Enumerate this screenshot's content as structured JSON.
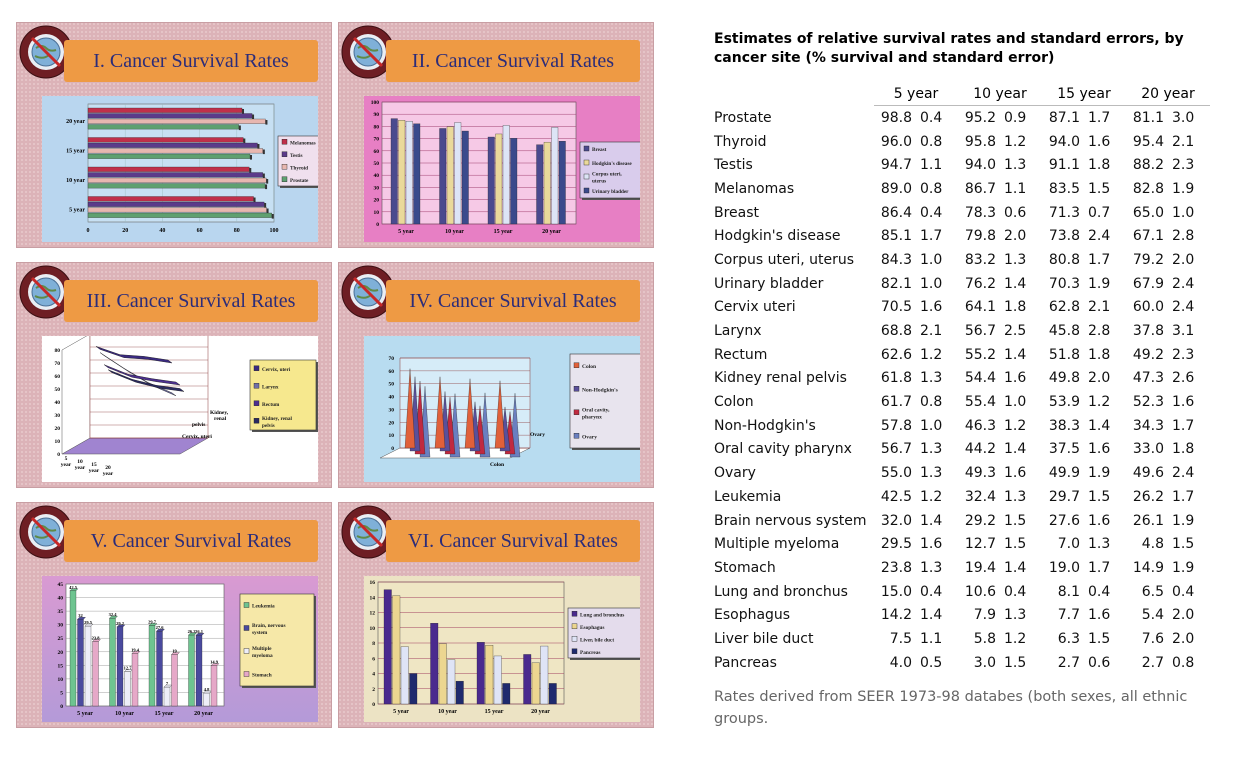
{
  "panels": [
    {
      "title": "I. Cancer Survival Rates"
    },
    {
      "title": "II. Cancer Survival Rates"
    },
    {
      "title": "III. Cancer Survival Rates"
    },
    {
      "title": "IV. Cancer Survival Rates"
    },
    {
      "title": "V. Cancer Survival Rates"
    },
    {
      "title": "VI. Cancer Survival Rates"
    }
  ],
  "table": {
    "title": "Estimates of relative survival rates and standard errors, by cancer  site (% survival and  standard error)",
    "columns": [
      "5 year",
      "10 year",
      "15 year",
      "20 year"
    ],
    "rows": [
      {
        "site": "Prostate",
        "vals": [
          "98.8",
          "0.4",
          "95.2",
          "0.9",
          "87.1",
          "1.7",
          "81.1",
          "3.0"
        ]
      },
      {
        "site": "Thyroid",
        "vals": [
          "96.0",
          "0.8",
          "95.8",
          "1.2",
          "94.0",
          "1.6",
          "95.4",
          "2.1"
        ]
      },
      {
        "site": "Testis",
        "vals": [
          "94.7",
          "1.1",
          "94.0",
          "1.3",
          "91.1",
          "1.8",
          "88.2",
          "2.3"
        ]
      },
      {
        "site": "Melanomas",
        "vals": [
          "89.0",
          "0.8",
          "86.7",
          "1.1",
          "83.5",
          "1.5",
          "82.8",
          "1.9"
        ]
      },
      {
        "site": "Breast",
        "vals": [
          "86.4",
          "0.4",
          "78.3",
          "0.6",
          "71.3",
          "0.7",
          "65.0",
          "1.0"
        ]
      },
      {
        "site": "Hodgkin's disease",
        "vals": [
          "85.1",
          "1.7",
          "79.8",
          "2.0",
          "73.8",
          "2.4",
          "67.1",
          "2.8"
        ]
      },
      {
        "site": "Corpus uteri, uterus",
        "vals": [
          "84.3",
          "1.0",
          "83.2",
          "1.3",
          "80.8",
          "1.7",
          "79.2",
          "2.0"
        ]
      },
      {
        "site": "Urinary bladder",
        "vals": [
          "82.1",
          "1.0",
          "76.2",
          "1.4",
          "70.3",
          "1.9",
          "67.9",
          "2.4"
        ]
      },
      {
        "site": "Cervix uteri",
        "vals": [
          "70.5",
          "1.6",
          "64.1",
          "1.8",
          "62.8",
          "2.1",
          "60.0",
          "2.4"
        ]
      },
      {
        "site": "Larynx",
        "vals": [
          "68.8",
          "2.1",
          "56.7",
          "2.5",
          "45.8",
          "2.8",
          "37.8",
          "3.1"
        ]
      },
      {
        "site": "Rectum",
        "vals": [
          "62.6",
          "1.2",
          "55.2",
          "1.4",
          "51.8",
          "1.8",
          "49.2",
          "2.3"
        ]
      },
      {
        "site": "Kidney renal pelvis",
        "vals": [
          "61.8",
          "1.3",
          "54.4",
          "1.6",
          "49.8",
          "2.0",
          "47.3",
          "2.6"
        ]
      },
      {
        "site": "Colon",
        "vals": [
          "61.7",
          "0.8",
          "55.4",
          "1.0",
          "53.9",
          "1.2",
          "52.3",
          "1.6"
        ]
      },
      {
        "site": "Non-Hodgkin's",
        "vals": [
          "57.8",
          "1.0",
          "46.3",
          "1.2",
          "38.3",
          "1.4",
          "34.3",
          "1.7"
        ]
      },
      {
        "site": "Oral cavity pharynx",
        "vals": [
          "56.7",
          "1.3",
          "44.2",
          "1.4",
          "37.5",
          "1.6",
          "33.0",
          "1.8"
        ]
      },
      {
        "site": "Ovary",
        "vals": [
          "55.0",
          "1.3",
          "49.3",
          "1.6",
          "49.9",
          "1.9",
          "49.6",
          "2.4"
        ]
      },
      {
        "site": "Leukemia",
        "vals": [
          "42.5",
          "1.2",
          "32.4",
          "1.3",
          "29.7",
          "1.5",
          "26.2",
          "1.7"
        ]
      },
      {
        "site": "Brain nervous system",
        "vals": [
          "32.0",
          "1.4",
          "29.2",
          "1.5",
          "27.6",
          "1.6",
          "26.1",
          "1.9"
        ]
      },
      {
        "site": "Multiple myeloma",
        "vals": [
          "29.5",
          "1.6",
          "12.7",
          "1.5",
          "7.0",
          "1.3",
          "4.8",
          "1.5"
        ]
      },
      {
        "site": "Stomach",
        "vals": [
          "23.8",
          "1.3",
          "19.4",
          "1.4",
          "19.0",
          "1.7",
          "14.9",
          "1.9"
        ]
      },
      {
        "site": "Lung and bronchus",
        "vals": [
          "15.0",
          "0.4",
          "10.6",
          "0.4",
          "8.1",
          "0.4",
          "6.5",
          "0.4"
        ]
      },
      {
        "site": "Esophagus",
        "vals": [
          "14.2",
          "1.4",
          "7.9",
          "1.3",
          "7.7",
          "1.6",
          "5.4",
          "2.0"
        ]
      },
      {
        "site": "Liver bile duct",
        "vals": [
          "7.5",
          "1.1",
          "5.8",
          "1.2",
          "6.3",
          "1.5",
          "7.6",
          "2.0"
        ]
      },
      {
        "site": "Pancreas",
        "vals": [
          "4.0",
          "0.5",
          "3.0",
          "1.5",
          "2.7",
          "0.6",
          "2.7",
          "0.8"
        ]
      }
    ],
    "footnote": "Rates derived from SEER 1973-98 databes (both sexes, all ethnic groups."
  },
  "chart_data": [
    {
      "type": "bar",
      "orientation": "horizontal",
      "categories": [
        "5 year",
        "10 year",
        "15 year",
        "20 year"
      ],
      "series": [
        {
          "name": "Melanomas",
          "values": [
            89.0,
            86.7,
            83.5,
            82.8
          ],
          "color": "#c0304a"
        },
        {
          "name": "Testis",
          "values": [
            94.7,
            94.0,
            91.1,
            88.2
          ],
          "color": "#5b3b8a"
        },
        {
          "name": "Thyroid",
          "values": [
            96.0,
            95.8,
            94.0,
            95.4
          ],
          "color": "#e8b7b0"
        },
        {
          "name": "Prostate",
          "values": [
            98.8,
            95.2,
            87.1,
            81.1
          ],
          "color": "#5fa070"
        }
      ],
      "xlim": [
        0,
        100
      ],
      "xticks": [
        0,
        20,
        40,
        60,
        80,
        100
      ],
      "legend": "right"
    },
    {
      "type": "bar",
      "categories": [
        "5 year",
        "10 year",
        "15 year",
        "20 year"
      ],
      "series": [
        {
          "name": "Breast",
          "values": [
            86.4,
            78.3,
            71.3,
            65.0
          ],
          "color": "#4a4a8e"
        },
        {
          "name": "Hodgkin's disease",
          "values": [
            85.1,
            79.8,
            73.8,
            67.1
          ],
          "color": "#ead99a"
        },
        {
          "name": "Corpus uteri, uterus",
          "values": [
            84.3,
            83.2,
            80.8,
            79.2
          ],
          "color": "#dde4f6"
        },
        {
          "name": "Urinary bladder",
          "values": [
            82.1,
            76.2,
            70.3,
            67.9
          ],
          "color": "#3a4a8c"
        }
      ],
      "ylim": [
        0,
        100
      ],
      "yticks": [
        0,
        10,
        20,
        30,
        40,
        50,
        60,
        70,
        80,
        90,
        100
      ],
      "legend": "right"
    },
    {
      "type": "line",
      "style": "3d-ribbon",
      "categories": [
        "5 year",
        "10 year",
        "15 year",
        "20 year"
      ],
      "series": [
        {
          "name": "Cervix, uteri",
          "values": [
            70.5,
            64.1,
            62.8,
            60.0
          ]
        },
        {
          "name": "Larynx",
          "values": [
            68.8,
            56.7,
            45.8,
            37.8
          ]
        },
        {
          "name": "Rectum",
          "values": [
            62.6,
            55.2,
            51.8,
            49.2
          ]
        },
        {
          "name": "Kidney, renal pelvis",
          "values": [
            61.8,
            54.4,
            49.8,
            47.3
          ]
        }
      ],
      "depth_labels": [
        "Kidney, renal pelvis",
        "Cervix, uteri"
      ],
      "ylim": [
        0,
        80
      ],
      "yticks": [
        0,
        10,
        20,
        30,
        40,
        50,
        60,
        70,
        80
      ],
      "legend": "right"
    },
    {
      "type": "bar",
      "style": "3d-cone",
      "categories": [
        "5 year",
        "10 year",
        "15 year",
        "20 year"
      ],
      "series": [
        {
          "name": "Colon",
          "values": [
            61.7,
            55.4,
            53.9,
            52.3
          ],
          "color": "#e0603a"
        },
        {
          "name": "Non-Hodgkin's",
          "values": [
            57.8,
            46.3,
            38.3,
            34.3
          ],
          "color": "#5a4f9a"
        },
        {
          "name": "Oral cavity, pharynx",
          "values": [
            56.7,
            44.2,
            37.5,
            33.0
          ],
          "color": "#c02a40"
        },
        {
          "name": "Ovary",
          "values": [
            55.0,
            49.3,
            49.9,
            49.6
          ],
          "color": "#6a7fc0"
        }
      ],
      "depth_labels": [
        "Ovary",
        "Colon"
      ],
      "data_labels": [
        "61.7",
        "57.8",
        "56.7",
        "55",
        "55.4",
        "49.3",
        "49.9",
        "49.6"
      ],
      "ylim": [
        0,
        70
      ],
      "yticks": [
        0,
        10,
        20,
        30,
        40,
        50,
        60,
        70
      ],
      "legend": "right"
    },
    {
      "type": "bar",
      "style": "3d",
      "categories": [
        "5 year",
        "10 year",
        "15 year",
        "20 year"
      ],
      "series": [
        {
          "name": "Leukemia",
          "values": [
            42.5,
            32.4,
            29.7,
            26.2
          ],
          "color": "#6ec490"
        },
        {
          "name": "Brain, nervous system",
          "values": [
            32.0,
            29.2,
            27.6,
            26.1
          ],
          "color": "#4a4a9e"
        },
        {
          "name": "Multiple myeloma",
          "values": [
            29.5,
            12.7,
            7.0,
            4.8
          ],
          "color": "#eeeef8"
        },
        {
          "name": "Stomach",
          "values": [
            23.8,
            19.4,
            19.0,
            14.9
          ],
          "color": "#e6a8c8"
        }
      ],
      "data_labels": [
        "42.5",
        "32.4",
        "29.2",
        "29.7",
        "26.2",
        "23.8",
        "14.9"
      ],
      "ylim": [
        0,
        45
      ],
      "yticks": [
        0,
        5,
        10,
        15,
        20,
        25,
        30,
        35,
        40,
        45
      ],
      "legend": "right"
    },
    {
      "type": "bar",
      "categories": [
        "5 year",
        "10 year",
        "15 year",
        "20 year"
      ],
      "series": [
        {
          "name": "Lung and bronchus",
          "values": [
            15.0,
            10.6,
            8.1,
            6.5
          ],
          "color": "#4a2a8e"
        },
        {
          "name": "Esophagus",
          "values": [
            14.2,
            7.9,
            7.7,
            5.4
          ],
          "color": "#ecd690"
        },
        {
          "name": "Liver, bile duct",
          "values": [
            7.5,
            5.8,
            6.3,
            7.6
          ],
          "color": "#dfe4f6"
        },
        {
          "name": "Pancreas",
          "values": [
            4.0,
            3.0,
            2.7,
            2.7
          ],
          "color": "#1f2a6e"
        }
      ],
      "ylim": [
        0,
        16
      ],
      "yticks": [
        0,
        2,
        4,
        6,
        8,
        10,
        12,
        14,
        16
      ],
      "legend": "right"
    }
  ]
}
